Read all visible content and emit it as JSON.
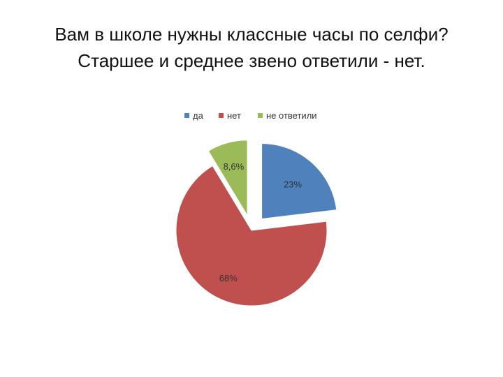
{
  "slide": {
    "title_line1": "Вам в школе нужны классные часы по селфи?",
    "title_line2": "Старшее и среднее звено ответили - нет."
  },
  "chart_data": {
    "type": "pie",
    "categories": [
      "да",
      "нет",
      "не ответили"
    ],
    "values": [
      23,
      68,
      8.6
    ],
    "value_labels": [
      "23%",
      "68%",
      "8,6%"
    ],
    "colors": [
      "#4F81BD",
      "#C0504D",
      "#9BBB59"
    ],
    "exploded": true,
    "legend_position": "top"
  }
}
